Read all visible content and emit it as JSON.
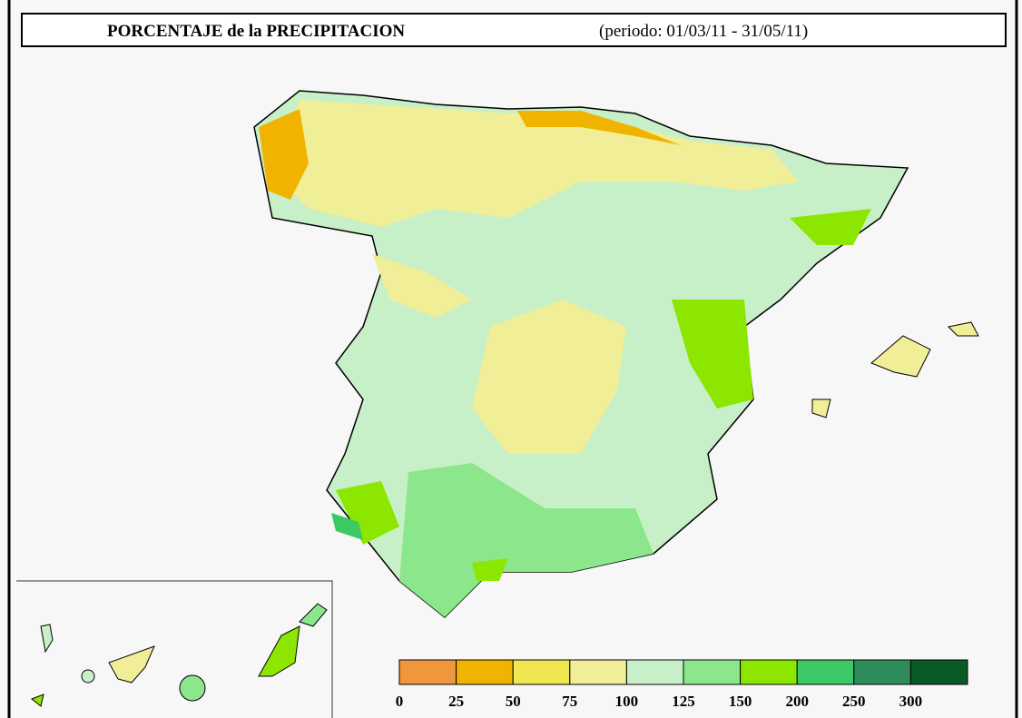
{
  "header": {
    "title": "PORCENTAJE de la PRECIPITACION",
    "period": "(periodo: 01/03/11 - 31/05/11)"
  },
  "legend": {
    "items": [
      {
        "label": 0,
        "color": "#f0963c"
      },
      {
        "label": 25,
        "color": "#f0b400"
      },
      {
        "label": 50,
        "color": "#f0e650"
      },
      {
        "label": 75,
        "color": "#f0ee96"
      },
      {
        "label": 100,
        "color": "#c8f0c8"
      },
      {
        "label": 125,
        "color": "#8ce68c"
      },
      {
        "label": 150,
        "color": "#8ce600"
      },
      {
        "label": 200,
        "color": "#3cc864"
      },
      {
        "label": 250,
        "color": "#2d8c5a"
      },
      {
        "label": 300,
        "color": "#0a5a28"
      }
    ]
  }
}
